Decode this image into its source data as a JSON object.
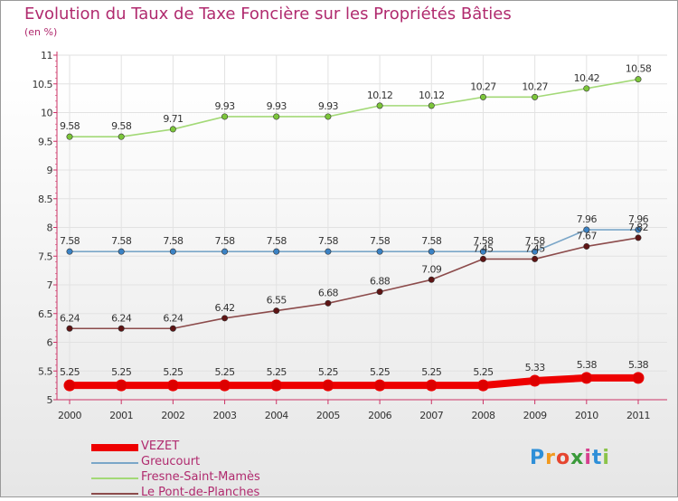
{
  "title": "Evolution du Taux de Taxe Foncière sur les Propriétés Bâties",
  "subtitle": "(en %)",
  "logo": {
    "letters": [
      "P",
      "r",
      "o",
      "x",
      "i",
      "t",
      "i"
    ],
    "colors": [
      "#2e8fd8",
      "#f29a1e",
      "#e6452f",
      "#3a9a3a",
      "#d73f8e",
      "#2e8fd8",
      "#8bc34a"
    ]
  },
  "chart_data": {
    "type": "line",
    "title": "Evolution du Taux de Taxe Foncière sur les Propriétés Bâties",
    "ylabel": "(en %)",
    "xlabel": "",
    "ylim": [
      5,
      11
    ],
    "yticks": [
      "5",
      "5.5",
      "6",
      "6.5",
      "7",
      "7.5",
      "8",
      "8.5",
      "9",
      "9.5",
      "10",
      "10.5",
      "11"
    ],
    "categories": [
      "2000",
      "2001",
      "2002",
      "2003",
      "2004",
      "2005",
      "2006",
      "2007",
      "2008",
      "2009",
      "2010",
      "2011"
    ],
    "series": [
      {
        "name": "VEZET",
        "color": "#ee0000",
        "marker": "#dd0000",
        "bold": true,
        "values": [
          5.25,
          5.25,
          5.25,
          5.25,
          5.25,
          5.25,
          5.25,
          5.25,
          5.25,
          5.33,
          5.38,
          5.38
        ]
      },
      {
        "name": "Greucourt",
        "color": "#7aa6c8",
        "marker": "#3b82c4",
        "bold": false,
        "values": [
          7.58,
          7.58,
          7.58,
          7.58,
          7.58,
          7.58,
          7.58,
          7.58,
          7.58,
          7.58,
          7.96,
          7.96
        ]
      },
      {
        "name": "Fresne-Saint-Mamès",
        "color": "#a3d977",
        "marker": "#7cc63a",
        "bold": false,
        "values": [
          9.58,
          9.58,
          9.71,
          9.93,
          9.93,
          9.93,
          10.12,
          10.12,
          10.27,
          10.27,
          10.42,
          10.58
        ]
      },
      {
        "name": "Le Pont-de-Planches",
        "color": "#8c4b4b",
        "marker": "#5e1414",
        "bold": false,
        "values": [
          6.24,
          6.24,
          6.24,
          6.42,
          6.55,
          6.68,
          6.88,
          7.09,
          7.45,
          7.45,
          7.67,
          7.82
        ]
      }
    ]
  }
}
